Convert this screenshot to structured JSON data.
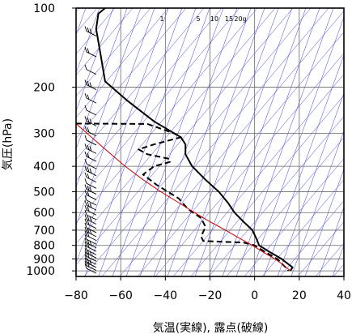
{
  "chart_data": {
    "type": "line",
    "title": "",
    "xlabel": "気温(実線), 露点(破線)",
    "ylabel": "気圧(hPa)",
    "x_unit": "°C",
    "y_unit": "hPa",
    "xlim": [
      -80,
      40
    ],
    "ylim": [
      1050,
      100
    ],
    "y_scale": "log",
    "grid": true,
    "x_ticks": [
      -80,
      -60,
      -40,
      -20,
      0,
      20,
      40
    ],
    "y_ticks": [
      100,
      200,
      300,
      400,
      500,
      600,
      700,
      800,
      900,
      1000
    ],
    "mixing_ratio_labels": [
      "1",
      "5",
      "10",
      "15",
      "20g"
    ],
    "series": [
      {
        "style": "solid",
        "color": "#000000",
        "points": [
          [
            -67,
            100
          ],
          [
            -70,
            105
          ],
          [
            -71,
            120
          ],
          [
            -69,
            150
          ],
          [
            -67,
            190
          ],
          [
            -57,
            225
          ],
          [
            -45,
            270
          ],
          [
            -33,
            310
          ],
          [
            -31,
            330
          ],
          [
            -31,
            360
          ],
          [
            -28,
            400
          ],
          [
            -22,
            450
          ],
          [
            -16,
            500
          ],
          [
            -12,
            550
          ],
          [
            -9,
            600
          ],
          [
            -5,
            650
          ],
          [
            -1,
            700
          ],
          [
            1,
            760
          ],
          [
            2,
            800
          ],
          [
            7,
            850
          ],
          [
            12,
            900
          ],
          [
            17,
            970
          ],
          [
            16,
            1000
          ]
        ]
      },
      {
        "style": "dashed",
        "color": "#000000",
        "points": [
          [
            -80,
            275
          ],
          [
            -48,
            276
          ],
          [
            -36,
            300
          ],
          [
            -33,
            310
          ],
          [
            -45,
            330
          ],
          [
            -52,
            345
          ],
          [
            -48,
            360
          ],
          [
            -38,
            375
          ],
          [
            -38,
            385
          ],
          [
            -45,
            400
          ],
          [
            -50,
            430
          ],
          [
            -44,
            470
          ],
          [
            -34,
            530
          ],
          [
            -30,
            580
          ],
          [
            -24,
            630
          ],
          [
            -22,
            680
          ],
          [
            -24,
            740
          ],
          [
            -23,
            770
          ],
          [
            -5,
            780
          ],
          [
            0,
            800
          ],
          [
            5,
            850
          ],
          [
            10,
            900
          ],
          [
            15,
            990
          ],
          [
            15,
            1000
          ]
        ]
      },
      {
        "style": "solid",
        "color": "#cc0000",
        "points": [
          [
            16,
            1000
          ],
          [
            13,
            950
          ],
          [
            9,
            900
          ],
          [
            4,
            850
          ],
          [
            -1,
            800
          ],
          [
            -7,
            750
          ],
          [
            -13,
            700
          ],
          [
            -20,
            650
          ],
          [
            -27,
            600
          ],
          [
            -34,
            550
          ],
          [
            -42,
            500
          ],
          [
            -50,
            450
          ],
          [
            -58,
            400
          ],
          [
            -66,
            350
          ],
          [
            -75,
            300
          ],
          [
            -80,
            275
          ]
        ]
      }
    ]
  }
}
